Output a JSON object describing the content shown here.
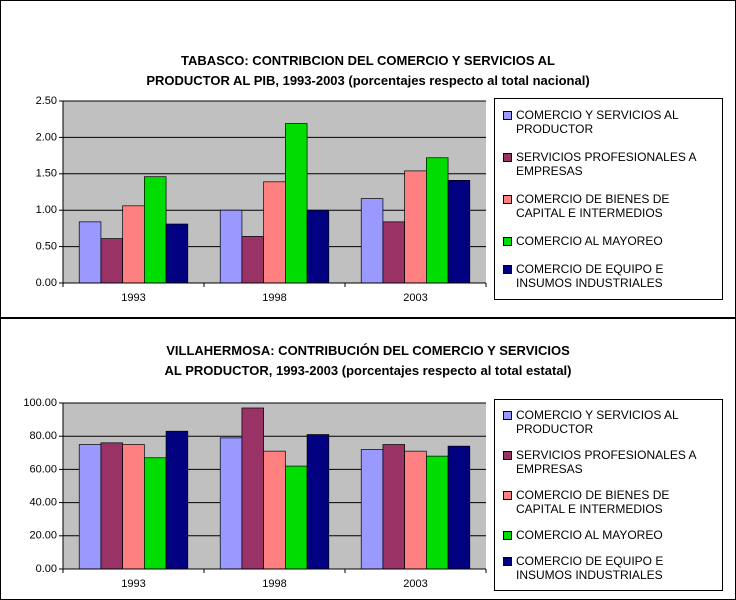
{
  "chart_data": [
    {
      "type": "bar",
      "title": [
        "TABASCO: CONTRIBCION DEL COMERCIO Y SERVICIOS AL",
        "PRODUCTOR AL PIB, 1993-2003 (porcentajes respecto al total nacional)"
      ],
      "categories": [
        "1993",
        "1998",
        "2003"
      ],
      "series": [
        {
          "name": "COMERCIO Y SERVICIOS AL PRODUCTOR",
          "color": "#9999ff",
          "values": [
            0.84,
            1.0,
            1.16
          ]
        },
        {
          "name": "SERVICIOS PROFESIONALES A EMPRESAS",
          "color": "#993366",
          "values": [
            0.61,
            0.64,
            0.84
          ]
        },
        {
          "name": "COMERCIO DE BIENES DE CAPITAL E INTERMEDIOS",
          "color": "#ff8080",
          "values": [
            1.06,
            1.39,
            1.54
          ]
        },
        {
          "name": "COMERCIO AL MAYOREO",
          "color": "#00dd00",
          "values": [
            1.46,
            2.19,
            1.72
          ]
        },
        {
          "name": "COMERCIO DE EQUIPO E INSUMOS INDUSTRIALES",
          "color": "#000080",
          "values": [
            0.81,
            1.0,
            1.41
          ]
        }
      ],
      "ylim": [
        0,
        2.5
      ],
      "yticks": [
        {
          "value": 0,
          "label": "0.00"
        },
        {
          "value": 0.5,
          "label": "0.50"
        },
        {
          "value": 1,
          "label": "1.00"
        },
        {
          "value": 1.5,
          "label": "1.50"
        },
        {
          "value": 2,
          "label": "2.00"
        },
        {
          "value": 2.5,
          "label": "2.50"
        }
      ],
      "grid": true,
      "legend": "right"
    },
    {
      "type": "bar",
      "title": [
        "VILLAHERMOSA: CONTRIBUCIÓN DEL COMERCIO Y SERVICIOS",
        "AL PRODUCTOR, 1993-2003 (porcentajes respecto al total estatal)"
      ],
      "categories": [
        "1993",
        "1998",
        "2003"
      ],
      "series": [
        {
          "name": "COMERCIO Y SERVICIOS AL PRODUCTOR",
          "color": "#9999ff",
          "values": [
            75,
            79,
            72
          ]
        },
        {
          "name": "SERVICIOS PROFESIONALES A EMPRESAS",
          "color": "#993366",
          "values": [
            76,
            97,
            75
          ]
        },
        {
          "name": "COMERCIO DE BIENES DE CAPITAL E INTERMEDIOS",
          "color": "#ff8080",
          "values": [
            75,
            71,
            71
          ]
        },
        {
          "name": "COMERCIO AL MAYOREO",
          "color": "#00dd00",
          "values": [
            67,
            62,
            68
          ]
        },
        {
          "name": "COMERCIO DE EQUIPO E INSUMOS INDUSTRIALES",
          "color": "#000080",
          "values": [
            83,
            81,
            74
          ]
        }
      ],
      "ylim": [
        0,
        100
      ],
      "yticks": [
        {
          "value": 0,
          "label": "0.00"
        },
        {
          "value": 20,
          "label": "20.00"
        },
        {
          "value": 40,
          "label": "40.00"
        },
        {
          "value": 60,
          "label": "60.00"
        },
        {
          "value": 80,
          "label": "80.00"
        },
        {
          "value": 100,
          "label": "100.00"
        }
      ],
      "grid": true,
      "legend": "right"
    }
  ]
}
